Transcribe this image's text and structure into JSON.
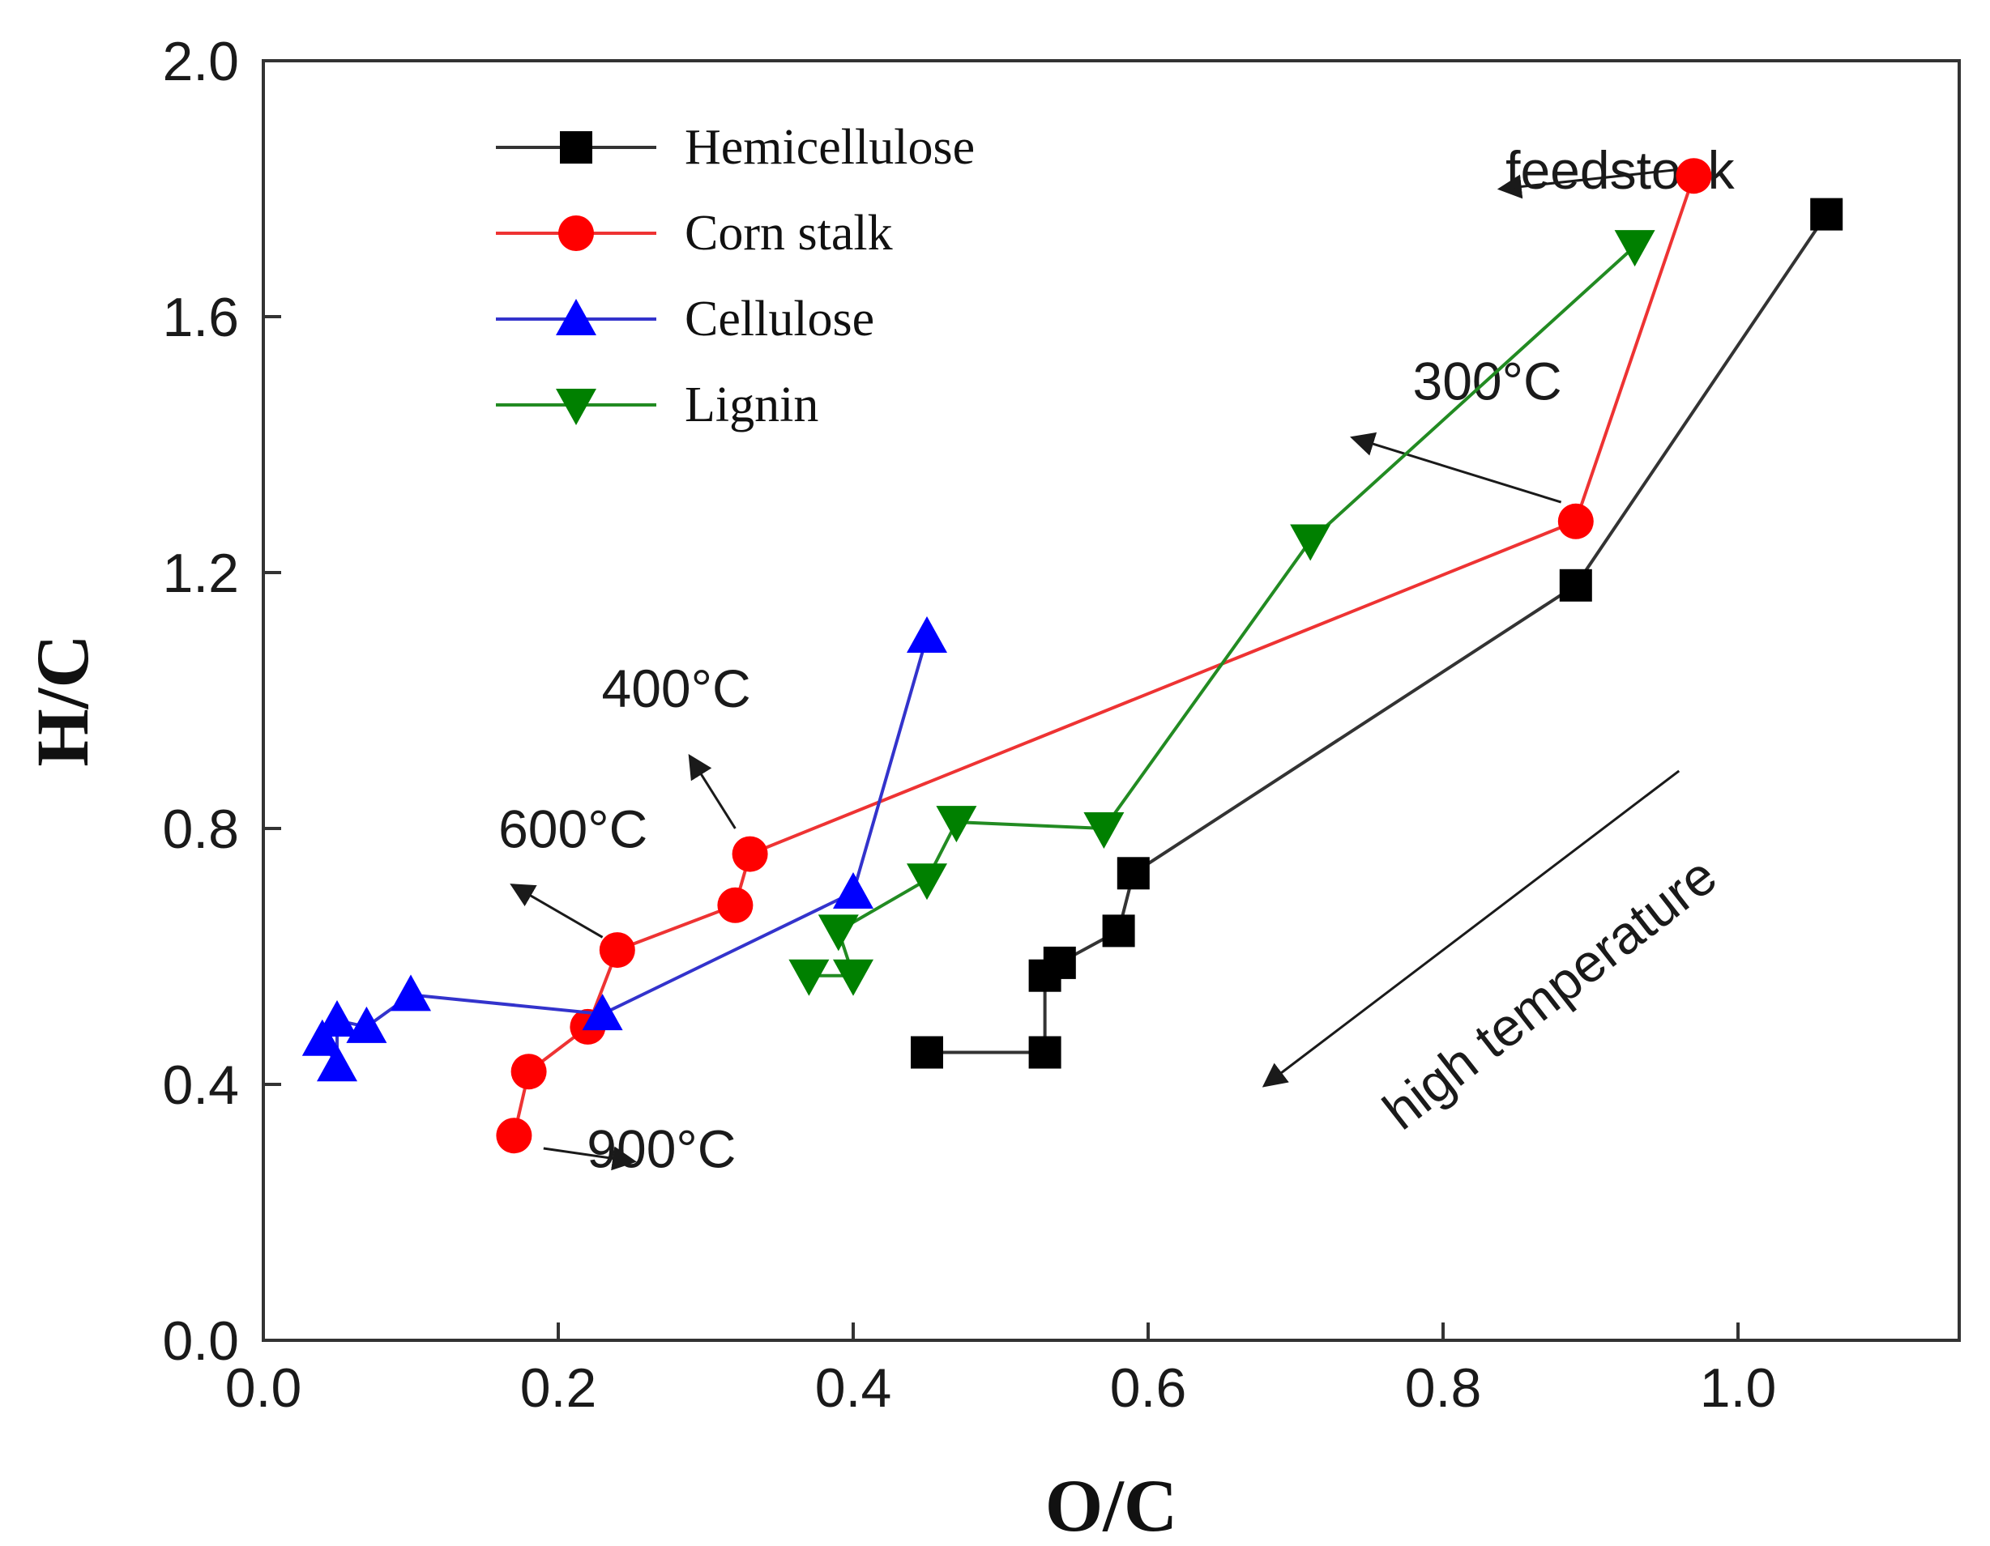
{
  "chart_data": {
    "type": "scatter",
    "xlabel": "O/C",
    "ylabel": "H/C",
    "xlim": [
      0.0,
      1.15
    ],
    "ylim": [
      0.0,
      2.0
    ],
    "x_ticks": [
      "0.0",
      "0.2",
      "0.4",
      "0.6",
      "0.8",
      "1.0"
    ],
    "y_ticks": [
      "0.0",
      "0.4",
      "0.8",
      "1.2",
      "1.6",
      "2.0"
    ],
    "legend_position": "top-left",
    "series": [
      {
        "name": "Hemicellulose",
        "color": "#000000",
        "line_color": "#333333",
        "marker": "square",
        "x": [
          1.06,
          0.89,
          0.59,
          0.58,
          0.54,
          0.53,
          0.53,
          0.45
        ],
        "y": [
          1.76,
          1.18,
          0.73,
          0.64,
          0.59,
          0.57,
          0.45,
          0.45
        ]
      },
      {
        "name": "Corn stalk",
        "color": "#ff0000",
        "line_color": "#ee3333",
        "marker": "circle",
        "x": [
          0.97,
          0.89,
          0.33,
          0.32,
          0.24,
          0.22,
          0.18,
          0.17
        ],
        "y": [
          1.82,
          1.28,
          0.76,
          0.68,
          0.61,
          0.49,
          0.42,
          0.32
        ]
      },
      {
        "name": "Cellulose",
        "color": "#0000ff",
        "line_color": "#3333cc",
        "marker": "triangle-up",
        "x": [
          0.45,
          0.4,
          0.23,
          0.1,
          0.07,
          0.05,
          0.05,
          0.04
        ],
        "y": [
          1.1,
          0.7,
          0.51,
          0.54,
          0.49,
          0.5,
          0.43,
          0.47
        ]
      },
      {
        "name": "Lignin",
        "color": "#008000",
        "line_color": "#228b22",
        "marker": "triangle-down",
        "x": [
          0.93,
          0.71,
          0.57,
          0.47,
          0.45,
          0.39,
          0.4,
          0.37
        ],
        "y": [
          1.71,
          1.25,
          0.8,
          0.81,
          0.72,
          0.64,
          0.57,
          0.57
        ]
      }
    ],
    "annotations": [
      {
        "text": "feedstock",
        "text_x": 0.92,
        "text_y": 1.8,
        "arrow_from": [
          0.96,
          1.83
        ],
        "arrow_to": [
          0.84,
          1.8
        ]
      },
      {
        "text": "300°C",
        "text_x": 0.83,
        "text_y": 1.47,
        "arrow_from": [
          0.88,
          1.31
        ],
        "arrow_to": [
          0.74,
          1.41
        ]
      },
      {
        "text": "400°C",
        "text_x": 0.28,
        "text_y": 0.99,
        "arrow_from": [
          0.32,
          0.8
        ],
        "arrow_to": [
          0.29,
          0.91
        ]
      },
      {
        "text": "600°C",
        "text_x": 0.21,
        "text_y": 0.77,
        "arrow_from": [
          0.23,
          0.63
        ],
        "arrow_to": [
          0.17,
          0.71
        ]
      },
      {
        "text": "900°C",
        "text_x": 0.27,
        "text_y": 0.27,
        "arrow_from": [
          0.19,
          0.3
        ],
        "arrow_to": [
          0.25,
          0.28
        ]
      },
      {
        "text": "high temperature",
        "text_x": 0.88,
        "text_y": 0.52,
        "rotation_deg": -38,
        "arrow_from": [
          0.96,
          0.89
        ],
        "arrow_to": [
          0.68,
          0.4
        ]
      }
    ]
  }
}
